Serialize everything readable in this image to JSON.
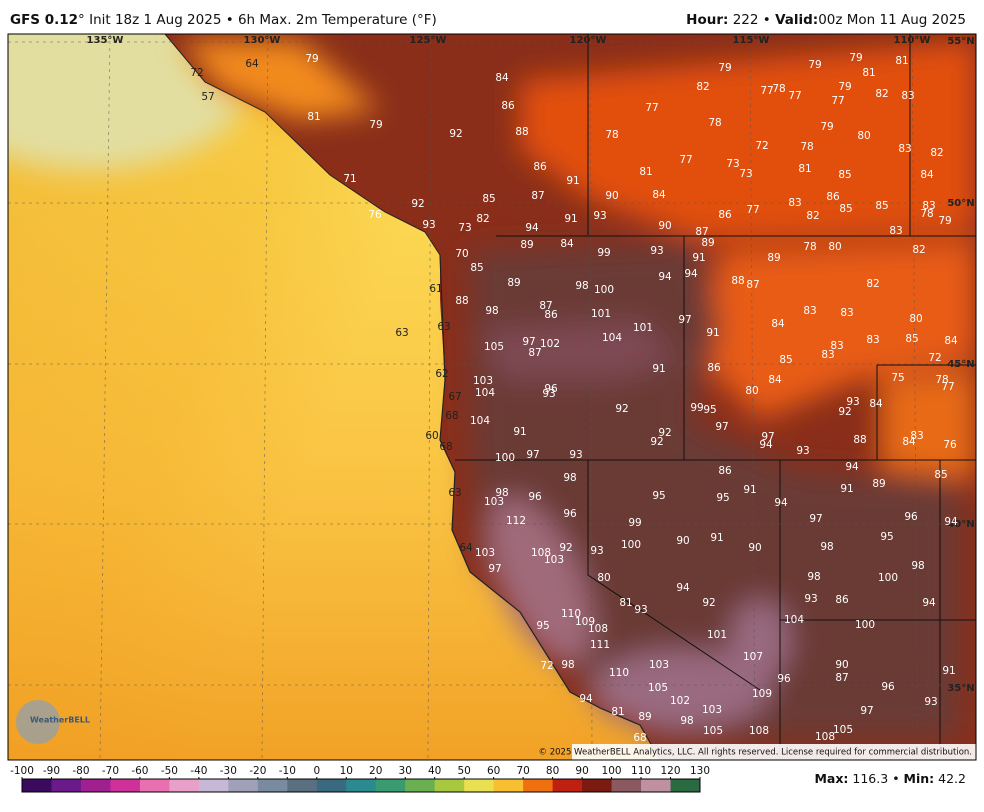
{
  "header": {
    "model": "GFS 0.12",
    "title": "° Init 18z 1 Aug 2025 • 6h Max. 2m Temperature (°F)",
    "hour_label": "Hour:",
    "hour": "222",
    "separator": "•",
    "valid_label": "Valid:",
    "valid": "00z Mon 11 Aug 2025"
  },
  "map": {
    "lon_labels": [
      "135°W",
      "130°W",
      "125°W",
      "120°W",
      "115°W",
      "110°W"
    ],
    "lat_labels": [
      "55°N",
      "50°N",
      "45°N",
      "40°N",
      "35°N"
    ],
    "temps": [
      79,
      84,
      86,
      92,
      88,
      86,
      91,
      90,
      84,
      87,
      85,
      93,
      91,
      94,
      90,
      89,
      84,
      99,
      93,
      94,
      98,
      100,
      101,
      87,
      86,
      101,
      104,
      97,
      102,
      87,
      105,
      103,
      104,
      96,
      93,
      91,
      92,
      104,
      91,
      92,
      92,
      97,
      100,
      93,
      98,
      98,
      103,
      96,
      96,
      95,
      112,
      99,
      100,
      103,
      108,
      103,
      92,
      93,
      90,
      91,
      90,
      97,
      80,
      94,
      92,
      81,
      93,
      95,
      110,
      109,
      108,
      111,
      101,
      107,
      110,
      103,
      98,
      72,
      105,
      102,
      103,
      98,
      105,
      109,
      108,
      94,
      81,
      89,
      68,
      105,
      108,
      97,
      96,
      93,
      90,
      87,
      96,
      104,
      100,
      93,
      86,
      98,
      100,
      94,
      98,
      98,
      95,
      97,
      96,
      94,
      91,
      94,
      95,
      91,
      86,
      91,
      89,
      94,
      93,
      97,
      94,
      88,
      84,
      83,
      76,
      85,
      97,
      95,
      99,
      80,
      84,
      93,
      92,
      84,
      86,
      85,
      83,
      83,
      84,
      83,
      83,
      83,
      85,
      84,
      80,
      72,
      75,
      78,
      77,
      82,
      82,
      78,
      80,
      89,
      88,
      87,
      91,
      97,
      89,
      91,
      94,
      87,
      86,
      77,
      83,
      82,
      85,
      86,
      85,
      83,
      78,
      79,
      83,
      84,
      85,
      81,
      78,
      72,
      73,
      73,
      77,
      81,
      78,
      77,
      78,
      79,
      82,
      77,
      78,
      77,
      79,
      79,
      81,
      79,
      77,
      82,
      83,
      81,
      79,
      80,
      83,
      82,
      79,
      81,
      71,
      76,
      92,
      93,
      82,
      73,
      70,
      85,
      89,
      88,
      98,
      61,
      63,
      63,
      62,
      67,
      68,
      60,
      68,
      63,
      64,
      72,
      57,
      64
    ],
    "copyright": "© 2025 WeatherBELL Analytics, LLC. All rights reserved. License required for commercial distribution.",
    "logo": "WeatherBELL"
  },
  "colorbar": {
    "ticks": [
      -100,
      -90,
      -80,
      -70,
      -60,
      -50,
      -40,
      -30,
      -20,
      -10,
      0,
      10,
      20,
      30,
      40,
      50,
      60,
      70,
      80,
      90,
      100,
      110,
      120,
      130
    ]
  },
  "footer": {
    "max_label": "Max:",
    "max": 116.3,
    "separator": "•",
    "min_label": "Min:",
    "min": 42.2
  }
}
